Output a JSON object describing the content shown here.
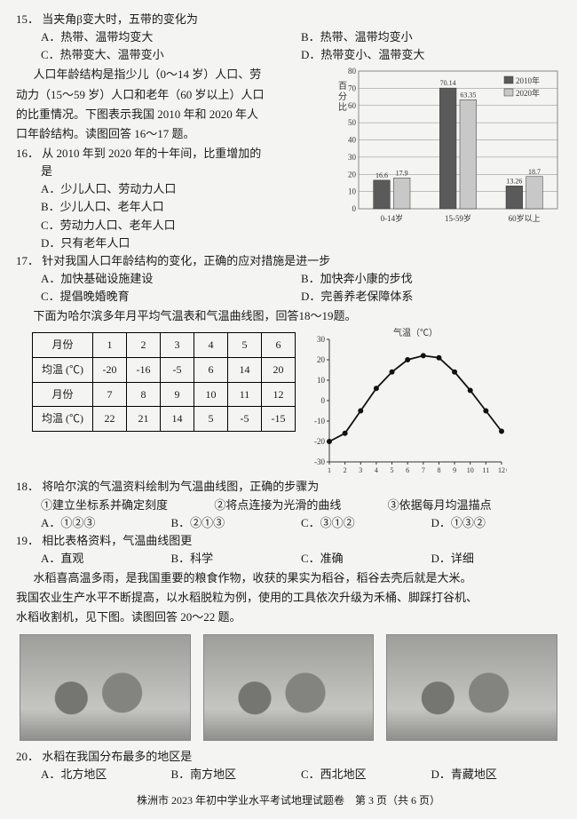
{
  "q15": {
    "num": "15．",
    "stem": "当夹角β变大时，五带的变化为",
    "A": "A．热带、温带均变大",
    "B": "B．热带、温带均变小",
    "C": "C．热带变大、温带变小",
    "D": "D．热带变小、温带变大"
  },
  "passage16": {
    "l1": "人口年龄结构是指少儿（0～14 岁）人口、劳",
    "l2": "动力（15～59 岁）人口和老年（60 岁以上）人口",
    "l3": "的比重情况。下图表示我国 2010 年和 2020 年人",
    "l4": "口年龄结构。读图回答 16～17 题。"
  },
  "q16": {
    "num": "16．",
    "stem1": "从 2010 年到 2020 年的十年间，比重增加的",
    "stem2": "是",
    "A": "A．少儿人口、劳动力人口",
    "B": "B．少儿人口、老年人口",
    "C": "C．劳动力人口、老年人口",
    "D": "D．只有老年人口"
  },
  "barChart": {
    "cats": [
      "0-14岁",
      "15-59岁",
      "60岁以上"
    ],
    "s2010": [
      16.6,
      70.14,
      13.26
    ],
    "s2020": [
      17.9,
      63.35,
      18.7
    ],
    "labels2010": [
      "16.6",
      "70.14",
      "13.26"
    ],
    "labels2020": [
      "17.9",
      "63.35",
      "18.7"
    ],
    "legend2010": "2010年",
    "legend2020": "2020年",
    "ylabel": "百分比",
    "ymax": 80,
    "ystep": 10,
    "color2010": "#5a5a5a",
    "color2020": "#c8c8c8",
    "grid": "#888888",
    "bg": "#f4f4f2"
  },
  "q17": {
    "num": "17．",
    "stem": "针对我国人口年龄结构的变化，正确的应对措施是进一步",
    "A": "A．加快基础设施建设",
    "B": "B．加快奔小康的步伐",
    "C": "C．提倡晚婚晚育",
    "D": "D．完善养老保障体系"
  },
  "passage18": "下面为哈尔滨多年月平均气温表和气温曲线图，回答18～19题。",
  "tempTable": {
    "h_month": "月份",
    "h_temp": "均温 (℃)",
    "m1": [
      "1",
      "2",
      "3",
      "4",
      "5",
      "6"
    ],
    "t1": [
      "-20",
      "-16",
      "-5",
      "6",
      "14",
      "20"
    ],
    "m2": [
      "7",
      "8",
      "9",
      "10",
      "11",
      "12"
    ],
    "t2": [
      "22",
      "21",
      "14",
      "5",
      "-5",
      "-15"
    ]
  },
  "lineChart": {
    "title": "气温（℃）",
    "xlabel": "（月）",
    "x": [
      1,
      2,
      3,
      4,
      5,
      6,
      7,
      8,
      9,
      10,
      11,
      12
    ],
    "y": [
      -20,
      -16,
      -5,
      6,
      14,
      20,
      22,
      21,
      14,
      5,
      -5,
      -15
    ],
    "ymin": -30,
    "ymax": 30,
    "ystep": 10,
    "line": "#111111",
    "bg": "#f4f4f2"
  },
  "q18": {
    "num": "18．",
    "stem": "将哈尔滨的气温资料绘制为气温曲线图，正确的步骤为",
    "s1": "①建立坐标系并确定刻度",
    "s2": "②将点连接为光滑的曲线",
    "s3": "③依据每月均温描点",
    "A": "A．①②③",
    "B": "B．②①③",
    "C": "C．③①②",
    "D": "D．①③②"
  },
  "q19": {
    "num": "19．",
    "stem": "相比表格资料，气温曲线图更",
    "A": "A．直观",
    "B": "B．科学",
    "C": "C．准确",
    "D": "D．详细"
  },
  "passage20": {
    "l1": "水稻喜高温多雨，是我国重要的粮食作物，收获的果实为稻谷，稻谷去壳后就是大米。",
    "l2": "我国农业生产水平不断提高，以水稻脱粒为例，使用的工具依次升级为禾桶、脚踩打谷机、",
    "l3": "水稻收割机，见下图。读图回答 20～22 题。"
  },
  "q20": {
    "num": "20．",
    "stem": "水稻在我国分布最多的地区是",
    "A": "A．北方地区",
    "B": "B．南方地区",
    "C": "C．西北地区",
    "D": "D．青藏地区"
  },
  "footer": "株洲市 2023 年初中学业水平考试地理试题卷　第 3 页（共 6 页）"
}
